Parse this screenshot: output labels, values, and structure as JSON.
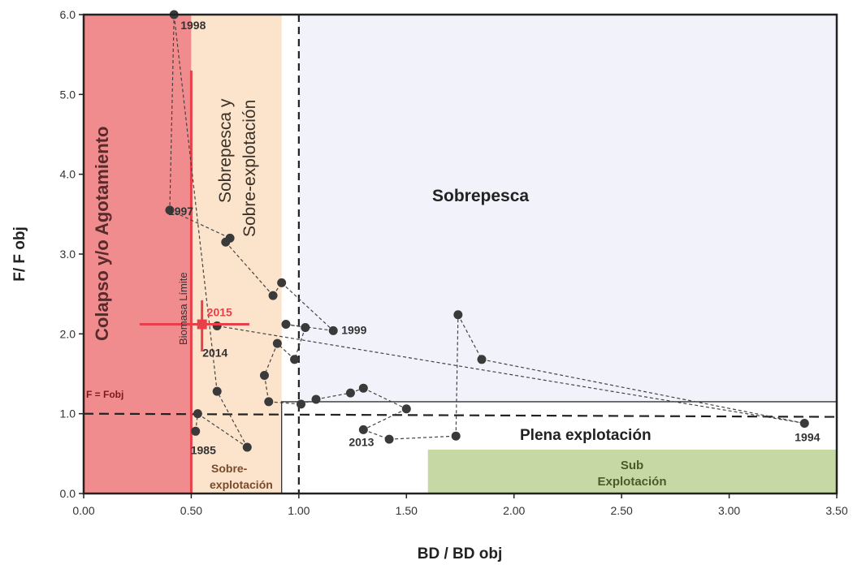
{
  "chart_data": {
    "type": "scatter",
    "xlabel": "BD / BD obj",
    "ylabel": "F/ F obj",
    "xlim": [
      0,
      3.5
    ],
    "ylim": [
      0,
      6
    ],
    "xticks": [
      0,
      0.5,
      1,
      1.5,
      2,
      2.5,
      3,
      3.5
    ],
    "xtick_labels": [
      "0.00",
      "0.50",
      "1.00",
      "1.50",
      "2.00",
      "2.50",
      "3.00",
      "3.50"
    ],
    "yticks": [
      0,
      1,
      2,
      3,
      4,
      5,
      6
    ],
    "ytick_labels": [
      "0.0",
      "1.0",
      "2.0",
      "3.0",
      "4.0",
      "5.0",
      "6.0"
    ],
    "zones": [
      {
        "label": "Colapso y/o Agotamiento",
        "color": "#f08c8e",
        "x": [
          0,
          0.5
        ],
        "y": [
          0,
          6
        ]
      },
      {
        "label": "Sobrepesca y Sobre-explotación",
        "color": "#fbe3cc",
        "x": [
          0.5,
          0.92
        ],
        "y": [
          0,
          6
        ]
      },
      {
        "label": "Sobrepesca",
        "color": "#f2f2fb",
        "x": [
          1.0,
          3.5
        ],
        "y": [
          1.0,
          6
        ]
      },
      {
        "label": "Sobre- explotación",
        "color": "#fbe3cc",
        "x": [
          0.5,
          0.92
        ],
        "y": [
          0,
          1.15
        ]
      },
      {
        "label": "Plena explotación",
        "color": "#ffffff",
        "x": [
          0.92,
          3.5
        ],
        "y": [
          0,
          1.15
        ]
      },
      {
        "label": "Sub Explotación",
        "color": "#c6d9a4",
        "x": [
          1.6,
          3.5
        ],
        "y": [
          0,
          0.55
        ]
      }
    ],
    "zone_text": {
      "colapso": "Colapso y/o Agotamiento",
      "sobrepesca_y_line1": "Sobrepesca y",
      "sobrepesca_y_line2": "Sobre-explotación",
      "sobrepesca": "Sobrepesca",
      "plena": "Plena explotación",
      "sobre_line1": "Sobre-",
      "sobre_line2": "explotación",
      "sub_line1": "Sub",
      "sub_line2": "Explotación"
    },
    "reference_lines": {
      "biomasa_limite": {
        "x": 0.5,
        "label": "Biomasa Límite",
        "color": "#e8404a"
      },
      "f_fobj": {
        "y": 1.0,
        "label": "F = Fobj"
      },
      "bd_obj": {
        "x": 1.0
      }
    },
    "trajectory": [
      {
        "x": 0.52,
        "y": 0.78,
        "label": "1985"
      },
      {
        "x": 0.53,
        "y": 1.0
      },
      {
        "x": 0.76,
        "y": 0.58
      },
      {
        "x": 0.62,
        "y": 1.28
      },
      {
        "x": 0.42,
        "y": 6.0,
        "label": "1998"
      },
      {
        "x": 0.4,
        "y": 3.55,
        "label": "1997"
      },
      {
        "x": 0.68,
        "y": 3.2
      },
      {
        "x": 0.66,
        "y": 3.15
      },
      {
        "x": 0.88,
        "y": 2.48
      },
      {
        "x": 0.92,
        "y": 2.64
      },
      {
        "x": 1.16,
        "y": 2.04,
        "label": "1999"
      },
      {
        "x": 0.94,
        "y": 2.12
      },
      {
        "x": 1.03,
        "y": 2.08
      },
      {
        "x": 0.98,
        "y": 1.68
      },
      {
        "x": 0.9,
        "y": 1.88
      },
      {
        "x": 0.84,
        "y": 1.48
      },
      {
        "x": 0.86,
        "y": 1.15
      },
      {
        "x": 1.01,
        "y": 1.12
      },
      {
        "x": 1.08,
        "y": 1.18
      },
      {
        "x": 1.24,
        "y": 1.26
      },
      {
        "x": 1.3,
        "y": 1.32
      },
      {
        "x": 1.5,
        "y": 1.06
      },
      {
        "x": 1.3,
        "y": 0.8,
        "label": "2013"
      },
      {
        "x": 1.42,
        "y": 0.68
      },
      {
        "x": 1.73,
        "y": 0.72
      },
      {
        "x": 1.74,
        "y": 2.24
      },
      {
        "x": 1.85,
        "y": 1.68
      },
      {
        "x": 3.35,
        "y": 0.88,
        "label": "1994"
      },
      {
        "x": 0.62,
        "y": 2.1,
        "label": "2014"
      }
    ],
    "current_point": {
      "x": 0.55,
      "y": 2.12,
      "label": "2015",
      "x_err": [
        0.26,
        0.77
      ],
      "y_err": [
        1.78,
        2.42
      ],
      "color": "#e8404a"
    }
  }
}
